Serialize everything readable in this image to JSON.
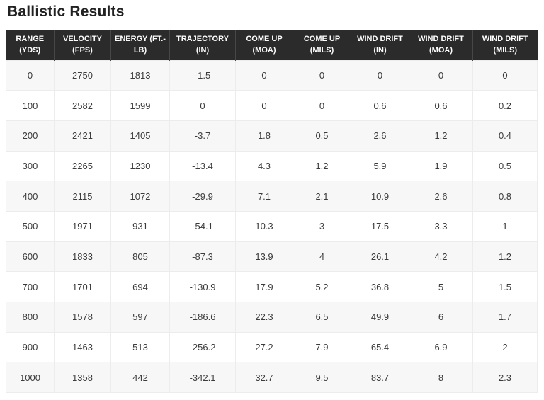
{
  "colors": {
    "title_text": "#222222",
    "header_bg": "#2b2b2b",
    "header_text": "#fdfdfd",
    "header_divider": "#474747",
    "row_stripe": "#f7f7f7",
    "row_white": "#ffffff",
    "cell_border": "#ececec",
    "cell_text": "#3b3b3b"
  },
  "chart_data": {
    "type": "table",
    "title": "Ballistic Results",
    "columns": [
      {
        "key": "range-yds",
        "line1": "RANGE",
        "line2": "(YDS)"
      },
      {
        "key": "velocity-fps",
        "line1": "VELOCITY",
        "line2": "(FPS)"
      },
      {
        "key": "energy-ft-lb",
        "line1": "ENERGY (FT.-",
        "line2": "LB)"
      },
      {
        "key": "trajectory-in",
        "line1": "TRAJECTORY",
        "line2": "(IN)"
      },
      {
        "key": "come-up-moa",
        "line1": "COME UP",
        "line2": "(MOA)"
      },
      {
        "key": "come-up-mils",
        "line1": "COME UP",
        "line2": "(MILS)"
      },
      {
        "key": "wind-drift-in",
        "line1": "WIND DRIFT",
        "line2": "(IN)"
      },
      {
        "key": "wind-drift-moa",
        "line1": "WIND DRIFT",
        "line2": "(MOA)"
      },
      {
        "key": "wind-drift-mils",
        "line1": "WIND DRIFT",
        "line2": "(MILS)"
      }
    ],
    "rows": [
      [
        "0",
        "2750",
        "1813",
        "-1.5",
        "0",
        "0",
        "0",
        "0",
        "0"
      ],
      [
        "100",
        "2582",
        "1599",
        "0",
        "0",
        "0",
        "0.6",
        "0.6",
        "0.2"
      ],
      [
        "200",
        "2421",
        "1405",
        "-3.7",
        "1.8",
        "0.5",
        "2.6",
        "1.2",
        "0.4"
      ],
      [
        "300",
        "2265",
        "1230",
        "-13.4",
        "4.3",
        "1.2",
        "5.9",
        "1.9",
        "0.5"
      ],
      [
        "400",
        "2115",
        "1072",
        "-29.9",
        "7.1",
        "2.1",
        "10.9",
        "2.6",
        "0.8"
      ],
      [
        "500",
        "1971",
        "931",
        "-54.1",
        "10.3",
        "3",
        "17.5",
        "3.3",
        "1"
      ],
      [
        "600",
        "1833",
        "805",
        "-87.3",
        "13.9",
        "4",
        "26.1",
        "4.2",
        "1.2"
      ],
      [
        "700",
        "1701",
        "694",
        "-130.9",
        "17.9",
        "5.2",
        "36.8",
        "5",
        "1.5"
      ],
      [
        "800",
        "1578",
        "597",
        "-186.6",
        "22.3",
        "6.5",
        "49.9",
        "6",
        "1.7"
      ],
      [
        "900",
        "1463",
        "513",
        "-256.2",
        "27.2",
        "7.9",
        "65.4",
        "6.9",
        "2"
      ],
      [
        "1000",
        "1358",
        "442",
        "-342.1",
        "32.7",
        "9.5",
        "83.7",
        "8",
        "2.3"
      ]
    ]
  }
}
